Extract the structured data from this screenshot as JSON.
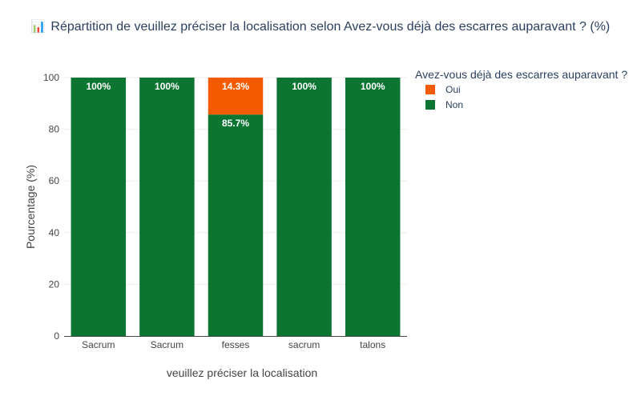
{
  "chart_data": {
    "type": "bar",
    "stacked": true,
    "title_icon": "bar-chart-icon",
    "title": "Répartition de veuillez préciser la localisation selon Avez-vous déjà des escarres auparavant ? (%)",
    "xlabel": "veuillez préciser la localisation",
    "ylabel": "Pourcentage (%)",
    "ylim": [
      0,
      100
    ],
    "yticks": [
      0,
      20,
      40,
      60,
      80,
      100
    ],
    "categories": [
      "Sacrum",
      "Sacrum",
      "fesses",
      "sacrum",
      "talons"
    ],
    "series": [
      {
        "name": "Non",
        "color": "#0b7531",
        "values": [
          100,
          100,
          85.7,
          100,
          100
        ],
        "labels": [
          "100%",
          "100%",
          "85.7%",
          "100%",
          "100%"
        ]
      },
      {
        "name": "Oui",
        "color": "#f45b00",
        "values": [
          0,
          0,
          14.3,
          0,
          0
        ],
        "labels": [
          "",
          "",
          "14.3%",
          "",
          ""
        ]
      }
    ],
    "legend": {
      "title": "Avez-vous déjà des escarres auparavant ?",
      "position": "top-right",
      "order": [
        "Oui",
        "Non"
      ]
    },
    "grid": true
  }
}
